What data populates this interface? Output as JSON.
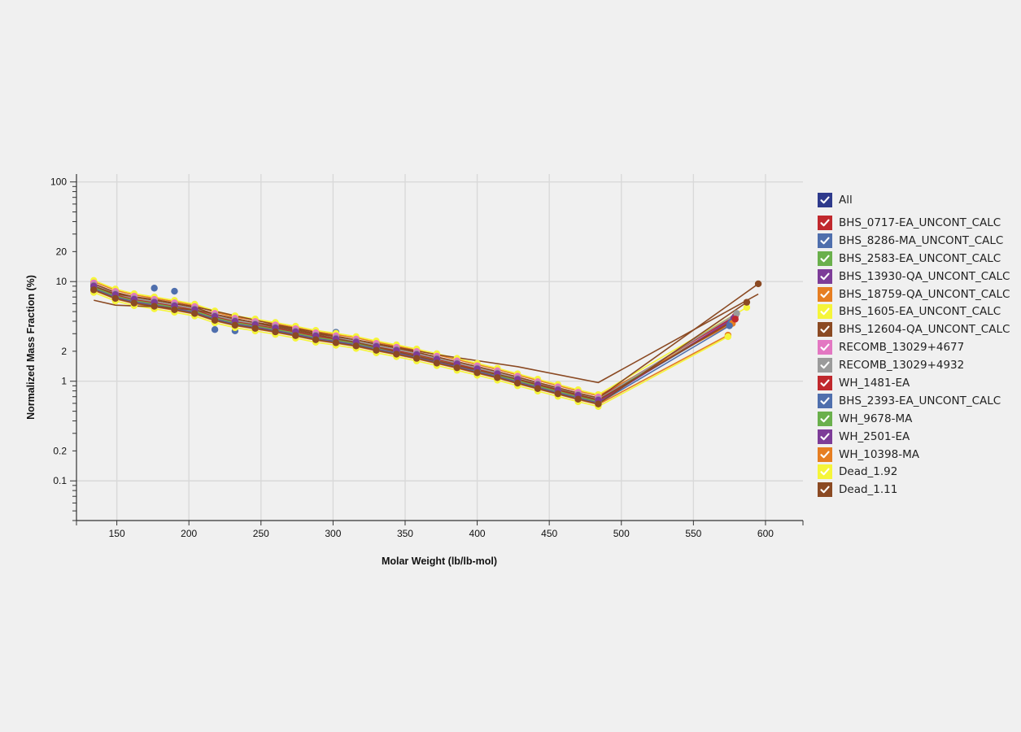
{
  "chart_data": {
    "type": "scatter",
    "title": "",
    "xlabel": "Molar Weight (lb/lb-mol)",
    "ylabel": "Normalized Mass Fraction (%)",
    "xlim": [
      122,
      626
    ],
    "ylim": [
      0.04,
      120
    ],
    "yscale": "log",
    "grid": true,
    "x_ticks": [
      150,
      200,
      250,
      300,
      350,
      400,
      450,
      500,
      550,
      600
    ],
    "y_ticks": [
      0.1,
      0.2,
      1,
      2,
      10,
      20,
      100
    ],
    "x_tick_labels": [
      "150",
      "200",
      "250",
      "300",
      "350",
      "400",
      "450",
      "500",
      "550",
      "600"
    ],
    "y_tick_labels": [
      "0.1",
      "0.2",
      "1",
      "2",
      "10",
      "20",
      "100"
    ],
    "legend_all_label": "All",
    "legend_all_color": "#2e3a8c",
    "legend_placement": "right",
    "x_points": [
      134,
      149,
      162,
      176,
      190,
      204,
      218,
      232,
      246,
      260,
      274,
      288,
      302,
      316,
      330,
      344,
      358,
      372,
      386,
      400,
      414,
      428,
      442,
      456,
      470,
      484
    ],
    "base_curve": [
      9.5,
      7.8,
      7.0,
      6.5,
      6.0,
      5.5,
      4.7,
      4.2,
      3.9,
      3.6,
      3.3,
      3.0,
      2.8,
      2.6,
      2.35,
      2.15,
      1.95,
      1.75,
      1.57,
      1.4,
      1.25,
      1.1,
      0.97,
      0.86,
      0.76,
      0.68
    ],
    "series": [
      {
        "name": "BHS_0717-EA_UNCONT_CALC",
        "color": "#c0282d",
        "factor": 1.0,
        "line": true,
        "tail_x": [
          579
        ],
        "tail_y": [
          4.5
        ]
      },
      {
        "name": "BHS_8286-MA_UNCONT_CALC",
        "color": "#4f6fad",
        "factor": 0.93,
        "line": true,
        "outliers": [
          [
            176,
            8.6
          ],
          [
            190,
            8.0
          ],
          [
            218,
            3.3
          ],
          [
            232,
            3.2
          ],
          [
            302,
            3.1
          ]
        ],
        "tail_x": [
          576
        ],
        "tail_y": [
          3.9
        ]
      },
      {
        "name": "BHS_2583-EA_UNCONT_CALC",
        "color": "#6ab04c",
        "factor": 0.96,
        "line": true,
        "tail_x": [
          578
        ],
        "tail_y": [
          4.2
        ]
      },
      {
        "name": "BHS_13930-QA_UNCONT_CALC",
        "color": "#7d3c98",
        "factor": 0.9,
        "line": true,
        "tail_x": [
          578
        ],
        "tail_y": [
          4.3
        ]
      },
      {
        "name": "BHS_18759-QA_UNCONT_CALC",
        "color": "#e67e22",
        "factor": 1.05,
        "line": true,
        "tail_x": [
          577
        ],
        "tail_y": [
          3.8
        ]
      },
      {
        "name": "BHS_1605-EA_UNCONT_CALC",
        "color": "#f5f53a",
        "factor": 1.08,
        "line": true,
        "tail_x": [
          587
        ],
        "tail_y": [
          5.5
        ]
      },
      {
        "name": "BHS_12604-QA_UNCONT_CALC",
        "color": "#8b4a23",
        "factor": 1.0,
        "line": true,
        "tail_x": [
          595
        ],
        "tail_y": [
          9.5
        ]
      },
      {
        "name": "RECOMB_13029+4677",
        "color": "#e377c2",
        "factor": 1.02,
        "line": false,
        "tail_x": [],
        "tail_y": []
      },
      {
        "name": "RECOMB_13029+4932",
        "color": "#9b9b9b",
        "factor": 0.97,
        "line": true,
        "tail_x": [
          580
        ],
        "tail_y": [
          4.8
        ]
      },
      {
        "name": "WH_1481-EA",
        "color": "#c0282d",
        "factor": 0.94,
        "line": true,
        "tail_x": [
          579
        ],
        "tail_y": [
          4.2
        ]
      },
      {
        "name": "BHS_2393-EA_UNCONT_CALC",
        "color": "#4f6fad",
        "factor": 0.88,
        "line": true,
        "tail_x": [
          575
        ],
        "tail_y": [
          3.6
        ]
      },
      {
        "name": "WH_9678-MA",
        "color": "#6ab04c",
        "factor": 0.92,
        "line": true,
        "tail_x": [],
        "tail_y": []
      },
      {
        "name": "WH_2501-EA",
        "color": "#7d3c98",
        "factor": 0.95,
        "line": false,
        "tail_x": [],
        "tail_y": []
      },
      {
        "name": "WH_10398-MA",
        "color": "#e67e22",
        "factor": 0.86,
        "line": true,
        "tail_x": [
          574
        ],
        "tail_y": [
          2.9
        ]
      },
      {
        "name": "Dead_1.92",
        "color": "#f5f53a",
        "factor": 0.82,
        "line": true,
        "tail_x": [
          574
        ],
        "tail_y": [
          2.8
        ]
      },
      {
        "name": "Dead_1.11",
        "color": "#8b4a23",
        "factor": 0.87,
        "line": true,
        "tail_x": [
          587
        ],
        "tail_y": [
          6.2
        ]
      }
    ],
    "extra_lines": [
      {
        "name": "Dead_1.11 upper",
        "color": "#8b4a23",
        "x": [
          134,
          149,
          176,
          204,
          260,
          316,
          372,
          428,
          484,
          595
        ],
        "y": [
          9.0,
          7.5,
          6.6,
          5.6,
          3.7,
          2.6,
          1.85,
          1.4,
          0.97,
          7.5
        ]
      },
      {
        "name": "Dead_1.11 lower",
        "color": "#8b4a23",
        "x": [
          134,
          149,
          176,
          204,
          260,
          316,
          372,
          428,
          484,
          580
        ],
        "y": [
          6.5,
          5.8,
          5.6,
          5.2,
          3.5,
          2.45,
          1.6,
          1.05,
          0.65,
          4.2
        ]
      }
    ]
  }
}
